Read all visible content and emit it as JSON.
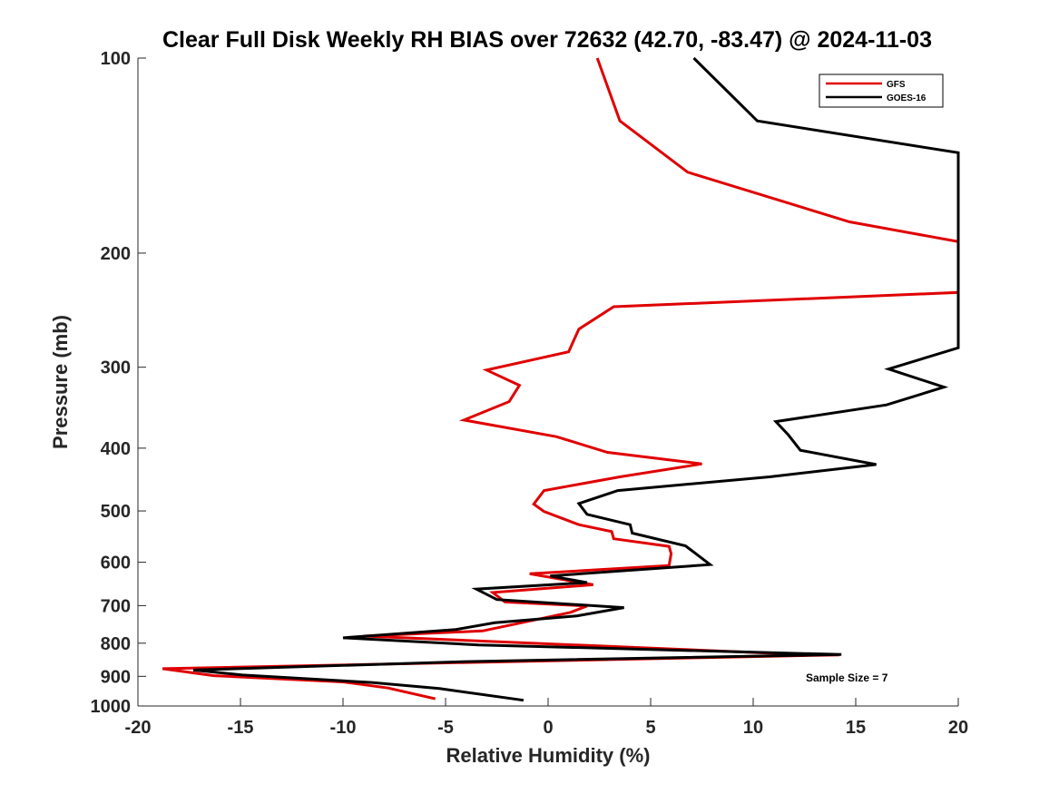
{
  "chart_data": {
    "type": "line",
    "title": "Clear Full Disk Weekly RH BIAS over 72632 (42.70, -83.47) @ 2024-11-03",
    "xlabel": "Relative Humidity (%)",
    "ylabel": "Pressure (mb)",
    "xlim": [
      -20,
      20
    ],
    "ylim": [
      100,
      1000
    ],
    "y_scale": "log",
    "y_reversed": true,
    "xticks": [
      "-20",
      "-15",
      "-10",
      "-5",
      "0",
      "5",
      "10",
      "15",
      "20"
    ],
    "yticks": [
      "100",
      "200",
      "300",
      "400",
      "500",
      "600",
      "700",
      "800",
      "900",
      "1000"
    ],
    "grid": false,
    "legend_position": "top-right",
    "annotation": "Sample Size = 7",
    "series": [
      {
        "name": "GFS",
        "color": "#e00000",
        "points": [
          [
            2.4,
            100
          ],
          [
            3.5,
            125
          ],
          [
            6.8,
            150
          ],
          [
            14.7,
            179
          ],
          [
            20.0,
            192
          ],
          [
            20.0,
            230
          ],
          [
            3.2,
            242
          ],
          [
            1.5,
            262
          ],
          [
            1.0,
            284
          ],
          [
            -3.0,
            303
          ],
          [
            -1.4,
            320
          ],
          [
            -1.9,
            339
          ],
          [
            -4.1,
            362
          ],
          [
            0.4,
            384
          ],
          [
            2.9,
            406
          ],
          [
            7.5,
            423
          ],
          [
            3.5,
            443
          ],
          [
            -0.2,
            465
          ],
          [
            -0.7,
            488
          ],
          [
            -0.2,
            501
          ],
          [
            1.5,
            525
          ],
          [
            3.1,
            538
          ],
          [
            3.2,
            552
          ],
          [
            5.9,
            567
          ],
          [
            6.0,
            582
          ],
          [
            5.9,
            607
          ],
          [
            -0.9,
            625
          ],
          [
            2.2,
            650
          ],
          [
            -2.7,
            668
          ],
          [
            -2.1,
            691
          ],
          [
            1.9,
            701
          ],
          [
            1.1,
            717
          ],
          [
            -3.2,
            766
          ],
          [
            -9.0,
            780
          ],
          [
            11.3,
            830
          ],
          [
            14.2,
            834
          ],
          [
            -18.8,
            876
          ],
          [
            -16.3,
            898
          ],
          [
            -10.0,
            918
          ],
          [
            -7.8,
            938
          ],
          [
            -5.5,
            975
          ]
        ]
      },
      {
        "name": "GOES-16",
        "color": "#000000",
        "points": [
          [
            7.1,
            100
          ],
          [
            10.2,
            125
          ],
          [
            20.0,
            140
          ],
          [
            20.0,
            280
          ],
          [
            16.6,
            302
          ],
          [
            19.3,
            322
          ],
          [
            16.5,
            343
          ],
          [
            11.1,
            364
          ],
          [
            11.7,
            381
          ],
          [
            12.3,
            403
          ],
          [
            16.0,
            424
          ],
          [
            10.8,
            443
          ],
          [
            3.4,
            465
          ],
          [
            1.5,
            487
          ],
          [
            1.9,
            506
          ],
          [
            4.0,
            525
          ],
          [
            4.1,
            541
          ],
          [
            6.7,
            566
          ],
          [
            7.9,
            605
          ],
          [
            0.1,
            630
          ],
          [
            1.9,
            645
          ],
          [
            -3.5,
            660
          ],
          [
            -2.5,
            685
          ],
          [
            3.7,
            705
          ],
          [
            1.4,
            726
          ],
          [
            -2.6,
            744
          ],
          [
            -4.5,
            762
          ],
          [
            -10.0,
            785
          ],
          [
            -3.4,
            805
          ],
          [
            14.3,
            833
          ],
          [
            -4.0,
            854
          ],
          [
            -17.3,
            880
          ],
          [
            -14.9,
            896
          ],
          [
            -8.6,
            920
          ],
          [
            -5.3,
            940
          ],
          [
            -1.2,
            980
          ]
        ]
      }
    ]
  }
}
